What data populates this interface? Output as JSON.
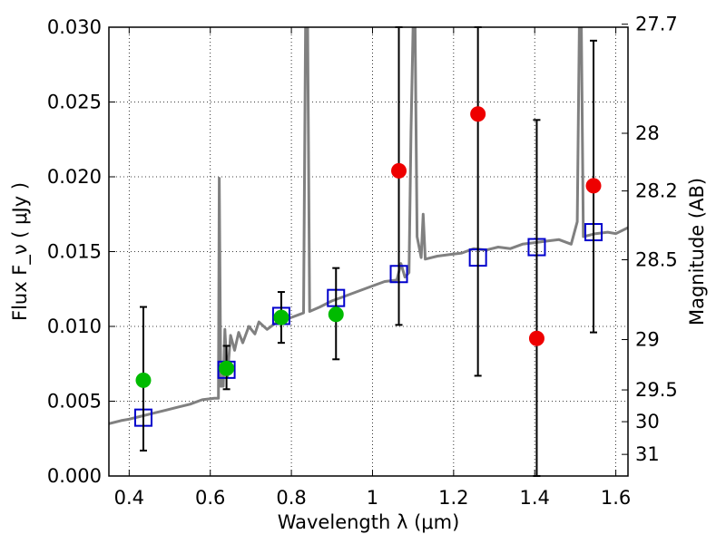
{
  "chart_data": {
    "type": "scatter",
    "xlabel": "Wavelength  λ (μm)",
    "ylabel": "Flux  F_ν  ( μJy )",
    "ylabel_right": "Magnitude (AB)",
    "xlim": [
      0.35,
      1.63
    ],
    "ylim": [
      0.0,
      0.03
    ],
    "grid": true,
    "x_ticks": [
      0.4,
      0.6,
      0.8,
      1.0,
      1.2,
      1.4,
      1.6
    ],
    "x_tick_labels": [
      "0.4",
      "0.6",
      "0.8",
      "1",
      "1.2",
      "1.4",
      "1.6"
    ],
    "y_ticks": [
      0.0,
      0.005,
      0.01,
      0.015,
      0.02,
      0.025,
      0.03
    ],
    "y_tick_labels": [
      "0.000",
      "0.005",
      "0.010",
      "0.015",
      "0.020",
      "0.025",
      "0.030"
    ],
    "right_ticks": [
      {
        "label": "27.7",
        "mag": 27.7
      },
      {
        "label": "28",
        "mag": 28.0
      },
      {
        "label": "28.2",
        "mag": 28.2
      },
      {
        "label": "28.5",
        "mag": 28.5
      },
      {
        "label": "29",
        "mag": 29.0
      },
      {
        "label": "29.5",
        "mag": 29.5
      },
      {
        "label": "30",
        "mag": 30.0
      },
      {
        "label": "31",
        "mag": 31.0
      }
    ],
    "series": [
      {
        "role": "observed photometry (with error bars)",
        "color": "#00bb00",
        "color_alt": "#ee0000",
        "points": [
          {
            "x": 0.435,
            "y": 0.0064,
            "err_lo": 0.0017,
            "err_hi": 0.0113,
            "color": "#00bb00"
          },
          {
            "x": 0.64,
            "y": 0.0072,
            "err_lo": 0.0058,
            "err_hi": 0.0087,
            "color": "#00bb00"
          },
          {
            "x": 0.775,
            "y": 0.0106,
            "err_lo": 0.0089,
            "err_hi": 0.0123,
            "color": "#00bb00"
          },
          {
            "x": 0.91,
            "y": 0.0108,
            "err_lo": 0.0078,
            "err_hi": 0.0139,
            "color": "#00bb00"
          },
          {
            "x": 1.065,
            "y": 0.0204,
            "err_lo": 0.0101,
            "err_hi": 0.03,
            "color": "#ee0000"
          },
          {
            "x": 1.26,
            "y": 0.0242,
            "err_lo": 0.0067,
            "err_hi": 0.03,
            "color": "#ee0000"
          },
          {
            "x": 1.405,
            "y": 0.0092,
            "err_lo": 0.0,
            "err_hi": 0.0238,
            "color": "#ee0000"
          },
          {
            "x": 1.545,
            "y": 0.0194,
            "err_lo": 0.0096,
            "err_hi": 0.0291,
            "color": "#ee0000"
          }
        ]
      },
      {
        "role": "model photometry",
        "color": "#0000cc",
        "points": [
          {
            "x": 0.435,
            "y": 0.0039
          },
          {
            "x": 0.64,
            "y": 0.0071
          },
          {
            "x": 0.775,
            "y": 0.0107
          },
          {
            "x": 0.91,
            "y": 0.0119
          },
          {
            "x": 1.065,
            "y": 0.0135
          },
          {
            "x": 1.26,
            "y": 0.0146
          },
          {
            "x": 1.405,
            "y": 0.0153
          },
          {
            "x": 1.545,
            "y": 0.0163
          }
        ]
      },
      {
        "role": "model spectrum",
        "color": "#808080",
        "line": [
          [
            0.35,
            0.0035
          ],
          [
            0.38,
            0.0037
          ],
          [
            0.4,
            0.0038
          ],
          [
            0.43,
            0.004
          ],
          [
            0.46,
            0.0042
          ],
          [
            0.49,
            0.0044
          ],
          [
            0.52,
            0.0046
          ],
          [
            0.55,
            0.0048
          ],
          [
            0.58,
            0.0051
          ],
          [
            0.61,
            0.0052
          ],
          [
            0.62,
            0.0052
          ],
          [
            0.622,
            0.0199
          ],
          [
            0.626,
            0.006
          ],
          [
            0.632,
            0.006
          ],
          [
            0.636,
            0.0098
          ],
          [
            0.642,
            0.0066
          ],
          [
            0.65,
            0.0094
          ],
          [
            0.66,
            0.0084
          ],
          [
            0.67,
            0.0096
          ],
          [
            0.68,
            0.0089
          ],
          [
            0.695,
            0.01
          ],
          [
            0.71,
            0.0095
          ],
          [
            0.72,
            0.0103
          ],
          [
            0.74,
            0.0098
          ],
          [
            0.76,
            0.0102
          ],
          [
            0.78,
            0.0104
          ],
          [
            0.8,
            0.0106
          ],
          [
            0.82,
            0.0108
          ],
          [
            0.83,
            0.0109
          ],
          [
            0.835,
            0.03
          ],
          [
            0.84,
            0.03
          ],
          [
            0.845,
            0.011
          ],
          [
            0.87,
            0.0113
          ],
          [
            0.9,
            0.0117
          ],
          [
            0.93,
            0.012
          ],
          [
            0.96,
            0.0123
          ],
          [
            1.0,
            0.0127
          ],
          [
            1.03,
            0.013
          ],
          [
            1.06,
            0.0131
          ],
          [
            1.07,
            0.0142
          ],
          [
            1.08,
            0.0133
          ],
          [
            1.09,
            0.0136
          ],
          [
            1.095,
            0.023
          ],
          [
            1.1,
            0.03
          ],
          [
            1.105,
            0.03
          ],
          [
            1.11,
            0.016
          ],
          [
            1.12,
            0.0146
          ],
          [
            1.125,
            0.0175
          ],
          [
            1.13,
            0.0145
          ],
          [
            1.16,
            0.0147
          ],
          [
            1.19,
            0.0148
          ],
          [
            1.22,
            0.0149
          ],
          [
            1.25,
            0.0152
          ],
          [
            1.28,
            0.0151
          ],
          [
            1.31,
            0.0153
          ],
          [
            1.34,
            0.0152
          ],
          [
            1.37,
            0.0155
          ],
          [
            1.4,
            0.0156
          ],
          [
            1.43,
            0.0157
          ],
          [
            1.46,
            0.0158
          ],
          [
            1.49,
            0.0155
          ],
          [
            1.505,
            0.017
          ],
          [
            1.51,
            0.03
          ],
          [
            1.515,
            0.03
          ],
          [
            1.52,
            0.016
          ],
          [
            1.55,
            0.0162
          ],
          [
            1.58,
            0.0163
          ],
          [
            1.6,
            0.0162
          ],
          [
            1.63,
            0.0166
          ]
        ]
      }
    ]
  }
}
